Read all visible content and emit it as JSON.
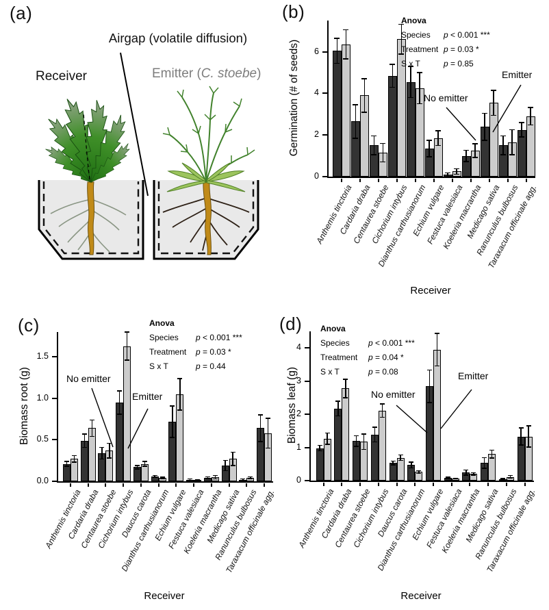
{
  "figure": {
    "panel_a": {
      "label": "(a)",
      "airgap_label": "Airgap (volatile diffusion)",
      "receiver_label": "Receiver",
      "emitter_prefix": "Emitter (",
      "emitter_species": "C. stoebe",
      "emitter_suffix": ")"
    }
  },
  "colors": {
    "no_emitter_bar": "#333333",
    "emitter_bar": "#cccccc",
    "soil": "#e9e9e9",
    "emitter_text": "#7d7d7d"
  },
  "chart_data": [
    {
      "id": "b",
      "type": "bar",
      "panel_label": "(b)",
      "ylabel": "Germination (# of seeds)",
      "xlabel": "Receiver",
      "ytick_labels": [
        "0",
        "2",
        "4",
        "6"
      ],
      "ylim": [
        0,
        7.5
      ],
      "categories": [
        "Anthemis tinctoria",
        "Cardaria draba",
        "Centaurea stoebe",
        "Cichorium intybus",
        "Dianthus carthusianorum",
        "Echium vulgare",
        "Festuca valesiaca",
        "Koeleria macrantha",
        "Medicago sativa",
        "Ranunculus bulbosus",
        "Taraxacum officinale agg."
      ],
      "series": [
        {
          "name": "No emitter",
          "color": "#333333",
          "values": [
            6.05,
            2.65,
            1.5,
            4.85,
            4.55,
            1.35,
            0.1,
            1.0,
            2.4,
            1.5,
            2.25
          ],
          "errors": [
            0.6,
            0.8,
            0.45,
            0.55,
            0.75,
            0.4,
            0.08,
            0.27,
            0.65,
            0.45,
            0.35
          ]
        },
        {
          "name": "Emitter",
          "color": "#cccccc",
          "values": [
            6.35,
            3.9,
            1.15,
            6.6,
            4.25,
            1.85,
            0.25,
            1.25,
            3.55,
            1.65,
            2.9
          ],
          "errors": [
            0.7,
            0.8,
            0.45,
            0.72,
            0.75,
            0.35,
            0.13,
            0.33,
            0.6,
            0.6,
            0.42
          ]
        }
      ],
      "anova": {
        "title": "Anova",
        "rows": [
          {
            "label": "Species",
            "p": "p < 0.001 ***"
          },
          {
            "label": "Treatment",
            "p": "p = 0.03 *"
          },
          {
            "label": "S x T",
            "p": "p = 0.85"
          }
        ]
      },
      "annotations": [
        "No emitter",
        "Emitter"
      ]
    },
    {
      "id": "c",
      "type": "bar",
      "panel_label": "(c)",
      "ylabel": "Biomass root (g)",
      "xlabel": "Receiver",
      "ytick_labels": [
        "0.0",
        "0.5",
        "1.0",
        "1.5"
      ],
      "ylim": [
        0,
        1.8
      ],
      "categories": [
        "Anthemis tinctoria",
        "Cardaria draba",
        "Centaurea stoebe",
        "Cichorium intybus",
        "Daucus carota",
        "Dianthus carthusianorum",
        "Echium vulgare",
        "Festuca valesiaca",
        "Koeleria macrantha",
        "Medicago sativa",
        "Ranunculus bulbosus",
        "Taraxacum officinale agg."
      ],
      "series": [
        {
          "name": "No emitter",
          "color": "#333333",
          "values": [
            0.21,
            0.49,
            0.34,
            0.95,
            0.17,
            0.06,
            0.72,
            0.02,
            0.04,
            0.19,
            0.02,
            0.64
          ],
          "errors": [
            0.03,
            0.08,
            0.07,
            0.14,
            0.02,
            0.012,
            0.19,
            0.008,
            0.012,
            0.06,
            0.008,
            0.16
          ]
        },
        {
          "name": "Emitter",
          "color": "#cccccc",
          "values": [
            0.27,
            0.64,
            0.37,
            1.63,
            0.21,
            0.04,
            1.05,
            0.015,
            0.05,
            0.27,
            0.04,
            0.58
          ],
          "errors": [
            0.04,
            0.1,
            0.09,
            0.17,
            0.03,
            0.01,
            0.19,
            0.006,
            0.02,
            0.08,
            0.012,
            0.18
          ]
        }
      ],
      "anova": {
        "title": "Anova",
        "rows": [
          {
            "label": "Species",
            "p": "p < 0.001 ***"
          },
          {
            "label": "Treatment",
            "p": "p = 0.03 *"
          },
          {
            "label": "S x T",
            "p": "p = 0.44"
          }
        ]
      },
      "annotations": [
        "No emitter",
        "Emitter"
      ]
    },
    {
      "id": "d",
      "type": "bar",
      "panel_label": "(d)",
      "ylabel": "Biomass leaf (g)",
      "xlabel": "Receiver",
      "ytick_labels": [
        "0",
        "1",
        "2",
        "3",
        "4"
      ],
      "ylim": [
        0,
        4.5
      ],
      "categories": [
        "Anthemis tinctoria",
        "Cardaria draba",
        "Centaurea stoebe",
        "Cichorium intybus",
        "Daucus carota",
        "Dianthus carthusianorum",
        "Echium vulgare",
        "Festuca valesiaca",
        "Koeleria macrantha",
        "Medicago sativa",
        "Ranunculus bulbosus",
        "Taraxacum officinale agg."
      ],
      "series": [
        {
          "name": "No emitter",
          "color": "#333333",
          "values": [
            0.98,
            2.17,
            1.19,
            1.39,
            0.53,
            0.47,
            2.84,
            0.08,
            0.24,
            0.53,
            0.04,
            1.33
          ],
          "errors": [
            0.08,
            0.22,
            0.16,
            0.22,
            0.06,
            0.09,
            0.49,
            0.02,
            0.08,
            0.16,
            0.02,
            0.26
          ]
        },
        {
          "name": "Emitter",
          "color": "#cccccc",
          "values": [
            1.26,
            2.78,
            1.17,
            2.11,
            0.69,
            0.26,
            3.95,
            0.06,
            0.2,
            0.8,
            0.11,
            1.33
          ],
          "errors": [
            0.17,
            0.28,
            0.23,
            0.2,
            0.08,
            0.04,
            0.49,
            0.012,
            0.04,
            0.12,
            0.04,
            0.32
          ]
        }
      ],
      "anova": {
        "title": "Anova",
        "rows": [
          {
            "label": "Species",
            "p": "p < 0.001 ***"
          },
          {
            "label": "Treatment",
            "p": "p = 0.04 *"
          },
          {
            "label": "S x T",
            "p": "p = 0.08"
          }
        ]
      },
      "annotations": [
        "No emitter",
        "Emitter"
      ]
    }
  ]
}
